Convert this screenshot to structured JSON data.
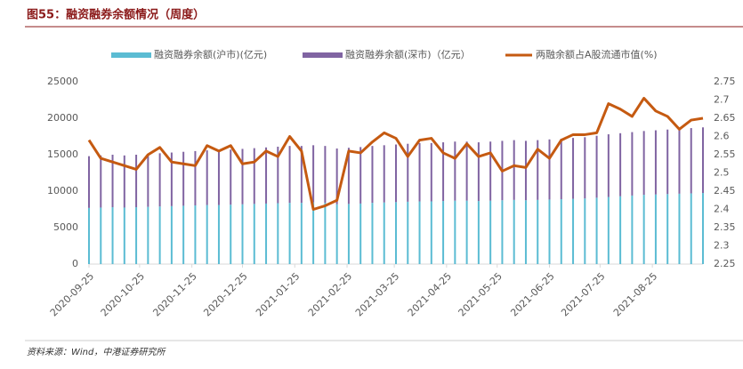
{
  "title": "图55：融资融券余额情况（周度）",
  "source": "资料来源：Wind，中港证券研究所",
  "chart_data": {
    "type": "bar-line",
    "x": [
      "2020-09-25",
      "2020-10-02",
      "2020-10-09",
      "2020-10-16",
      "2020-10-23",
      "2020-10-30",
      "2020-11-06",
      "2020-11-13",
      "2020-11-20",
      "2020-11-27",
      "2020-12-04",
      "2020-12-11",
      "2020-12-18",
      "2020-12-25",
      "2021-01-01",
      "2021-01-08",
      "2021-01-15",
      "2021-01-22",
      "2021-01-29",
      "2021-02-05",
      "2021-02-12",
      "2021-02-19",
      "2021-02-26",
      "2021-03-05",
      "2021-03-12",
      "2021-03-19",
      "2021-03-26",
      "2021-04-02",
      "2021-04-09",
      "2021-04-16",
      "2021-04-23",
      "2021-04-30",
      "2021-05-07",
      "2021-05-14",
      "2021-05-21",
      "2021-05-28",
      "2021-06-04",
      "2021-06-11",
      "2021-06-18",
      "2021-06-25",
      "2021-07-02",
      "2021-07-09",
      "2021-07-16",
      "2021-07-23",
      "2021-07-30",
      "2021-08-06",
      "2021-08-13",
      "2021-08-20",
      "2021-08-27",
      "2021-09-03",
      "2021-09-10",
      "2021-09-17",
      "2021-09-24"
    ],
    "xlim": [
      "2020-09-25",
      "2021-09-24"
    ],
    "xticks": [
      "2020-09-25",
      "2020-10-25",
      "2020-11-25",
      "2020-12-25",
      "2021-01-25",
      "2021-02-25",
      "2021-03-25",
      "2021-04-25",
      "2021-05-25",
      "2021-06-25",
      "2021-07-25",
      "2021-08-25"
    ],
    "ylim": [
      0,
      25000
    ],
    "yticks": [
      0,
      5000,
      10000,
      15000,
      20000,
      25000
    ],
    "y2lim": [
      2.25,
      2.75
    ],
    "y2ticks": [
      2.25,
      2.3,
      2.35,
      2.4,
      2.45,
      2.5,
      2.55,
      2.6,
      2.65,
      2.7,
      2.75
    ],
    "series": [
      {
        "name": "融资融券余额(沪市)(亿元)",
        "color": "#5bbcd3",
        "stacked": true,
        "values": [
          7700,
          7750,
          7800,
          7750,
          7800,
          7850,
          7900,
          7950,
          8000,
          8050,
          8100,
          8100,
          8150,
          8200,
          8250,
          8300,
          8350,
          8400,
          8400,
          8450,
          8400,
          8200,
          8250,
          8300,
          8400,
          8450,
          8500,
          8550,
          8600,
          8600,
          8650,
          8700,
          8700,
          8650,
          8700,
          8750,
          8800,
          8750,
          8800,
          8850,
          8900,
          8950,
          9000,
          9100,
          9200,
          9300,
          9400,
          9500,
          9550,
          9600,
          9650,
          9700,
          9750
        ]
      },
      {
        "name": "融资融券余额(深市)（亿元）",
        "color": "#8064a2",
        "stacked": true,
        "values": [
          7100,
          7150,
          7200,
          7150,
          7200,
          7250,
          7300,
          7350,
          7400,
          7450,
          7500,
          7500,
          7550,
          7600,
          7650,
          7700,
          7750,
          7800,
          7800,
          7850,
          7800,
          7650,
          7700,
          7750,
          7800,
          7850,
          7900,
          7950,
          8000,
          8000,
          8050,
          8100,
          8100,
          8050,
          8100,
          8150,
          8200,
          8150,
          8200,
          8250,
          8300,
          8350,
          8400,
          8500,
          8600,
          8650,
          8700,
          8750,
          8800,
          8850,
          8900,
          8950,
          9000
        ]
      },
      {
        "name": "两融余额占A股流通市值(%)",
        "color": "#c55a11",
        "axis": "y2",
        "type": "line",
        "values": [
          2.59,
          2.54,
          2.53,
          2.52,
          2.51,
          2.55,
          2.57,
          2.53,
          2.525,
          2.52,
          2.575,
          2.56,
          2.575,
          2.525,
          2.53,
          2.56,
          2.545,
          2.6,
          2.56,
          2.4,
          2.41,
          2.425,
          2.56,
          2.555,
          2.585,
          2.61,
          2.595,
          2.545,
          2.59,
          2.595,
          2.555,
          2.54,
          2.58,
          2.545,
          2.555,
          2.505,
          2.52,
          2.515,
          2.565,
          2.54,
          2.59,
          2.605,
          2.605,
          2.61,
          2.69,
          2.675,
          2.655,
          2.705,
          2.67,
          2.655,
          2.62,
          2.645,
          2.65
        ]
      }
    ]
  }
}
